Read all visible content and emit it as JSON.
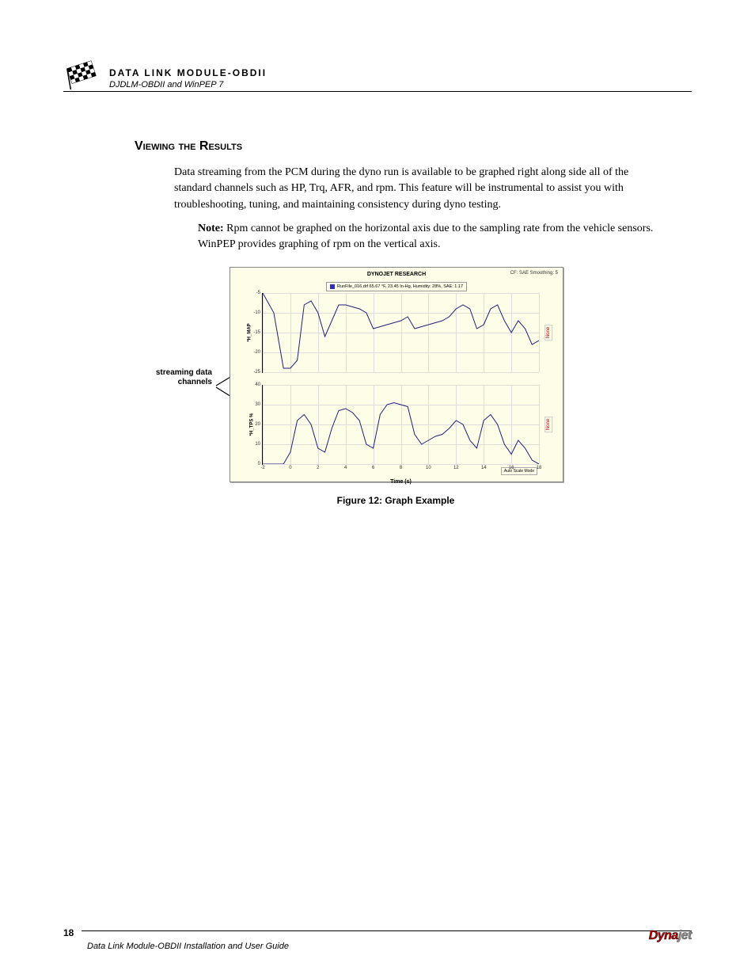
{
  "header": {
    "title": "DATA LINK MODULE-OBDII",
    "subtitle": "DJDLM-OBDII and WinPEP 7"
  },
  "section": {
    "title": "Viewing the Results",
    "body": "Data streaming from the PCM during the dyno run is available to be graphed right along side all of the standard channels such as HP, Trq, AFR, and rpm. This feature will be instrumental to assist you with troubleshooting, tuning, and maintaining consistency during dyno testing.",
    "note_label": "Note:",
    "note": " Rpm cannot be graphed on the horizontal axis due to the sampling rate from the vehicle sensors. WinPEP provides graphing of rpm on the vertical axis."
  },
  "callout": "streaming data channels",
  "chart": {
    "title": "DYNOJET RESEARCH",
    "top_right": "CF: SAE  Smoothing: 5",
    "legend": "RunFile_016.drf  65.67 °F, 23.45 In-Hg, Humidity: 28%, SAE: 1.17",
    "xaxis": {
      "label": "Time (s)",
      "min": -2,
      "max": 18,
      "ticks": [
        -2,
        0,
        2,
        4,
        6,
        8,
        10,
        12,
        14,
        16,
        18
      ]
    },
    "top_panel": {
      "ylabel": "*H_MAP",
      "rlabel": "None",
      "min": -25,
      "max": -5,
      "ticks": [
        -5,
        -10,
        -15,
        -20,
        -25
      ],
      "color": "#202080",
      "data": [
        [
          -2,
          -5
        ],
        [
          -1.2,
          -10
        ],
        [
          -0.5,
          -24
        ],
        [
          0,
          -24
        ],
        [
          0.5,
          -22
        ],
        [
          1,
          -8
        ],
        [
          1.5,
          -7
        ],
        [
          2,
          -10
        ],
        [
          2.5,
          -16
        ],
        [
          3,
          -12
        ],
        [
          3.5,
          -8
        ],
        [
          4,
          -8
        ],
        [
          5,
          -9
        ],
        [
          5.5,
          -10
        ],
        [
          6,
          -14
        ],
        [
          7,
          -13
        ],
        [
          8,
          -12
        ],
        [
          8.5,
          -11
        ],
        [
          9,
          -14
        ],
        [
          10,
          -13
        ],
        [
          11,
          -12
        ],
        [
          11.5,
          -11
        ],
        [
          12,
          -9
        ],
        [
          12.5,
          -8
        ],
        [
          13,
          -9
        ],
        [
          13.5,
          -14
        ],
        [
          14,
          -13
        ],
        [
          14.5,
          -9
        ],
        [
          15,
          -8
        ],
        [
          15.5,
          -12
        ],
        [
          16,
          -15
        ],
        [
          16.5,
          -12
        ],
        [
          17,
          -14
        ],
        [
          17.5,
          -18
        ],
        [
          18,
          -17
        ]
      ]
    },
    "bot_panel": {
      "ylabel": "*H_TPS %",
      "rlabel": "None",
      "min": 0,
      "max": 40,
      "ticks": [
        0,
        10,
        20,
        30,
        40
      ],
      "color": "#202080",
      "data": [
        [
          -2,
          0
        ],
        [
          -1,
          0
        ],
        [
          -0.5,
          0
        ],
        [
          0,
          6
        ],
        [
          0.5,
          22
        ],
        [
          1,
          25
        ],
        [
          1.5,
          20
        ],
        [
          2,
          8
        ],
        [
          2.5,
          6
        ],
        [
          3,
          18
        ],
        [
          3.5,
          27
        ],
        [
          4,
          28
        ],
        [
          4.5,
          26
        ],
        [
          5,
          22
        ],
        [
          5.5,
          10
        ],
        [
          6,
          8
        ],
        [
          6.5,
          25
        ],
        [
          7,
          30
        ],
        [
          7.5,
          31
        ],
        [
          8,
          30
        ],
        [
          8.5,
          29
        ],
        [
          9,
          15
        ],
        [
          9.5,
          10
        ],
        [
          10,
          12
        ],
        [
          10.5,
          14
        ],
        [
          11,
          15
        ],
        [
          11.5,
          18
        ],
        [
          12,
          22
        ],
        [
          12.5,
          20
        ],
        [
          13,
          12
        ],
        [
          13.5,
          8
        ],
        [
          14,
          22
        ],
        [
          14.5,
          25
        ],
        [
          15,
          20
        ],
        [
          15.5,
          10
        ],
        [
          16,
          5
        ],
        [
          16.5,
          12
        ],
        [
          17,
          8
        ],
        [
          17.5,
          2
        ],
        [
          18,
          0
        ]
      ]
    },
    "autoscale": "Auto Scale Mode"
  },
  "figure_caption": "Figure 12: Graph Example",
  "footer": {
    "page": "18",
    "title": "Data Link Module-OBDII Installation and User Guide",
    "logo_red": "Dyna",
    "logo_grey": "jet"
  }
}
